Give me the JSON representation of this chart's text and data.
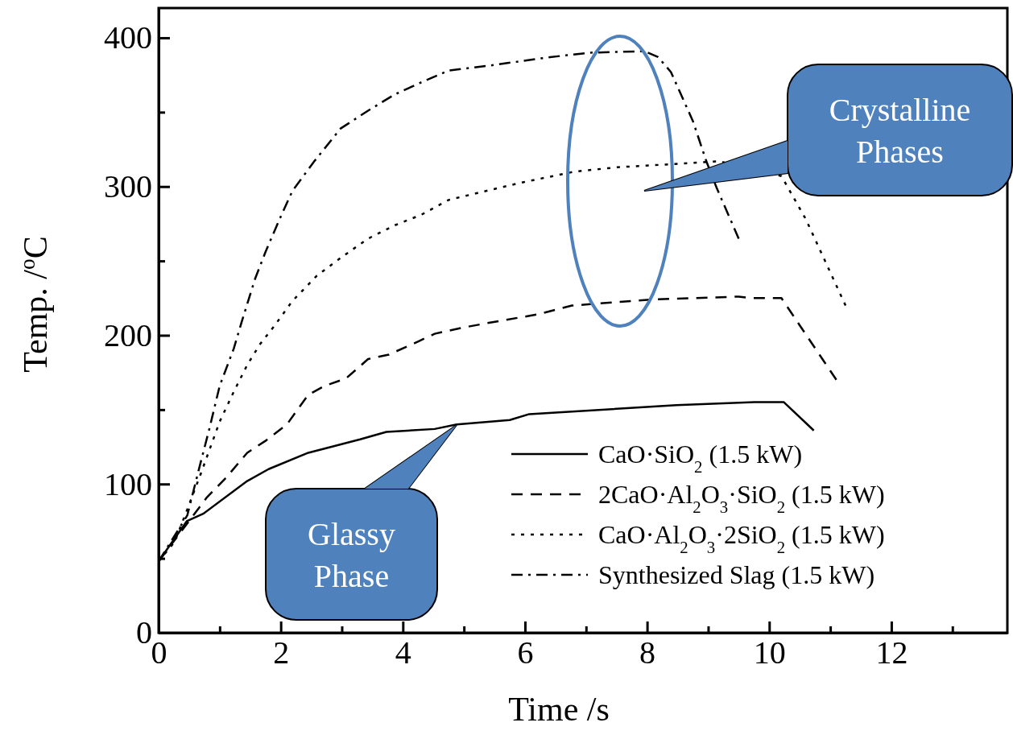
{
  "chart_data": {
    "type": "line",
    "xlabel": "Time /s",
    "ylabel": "Temp. /$^{o}$C",
    "xlim": [
      0,
      13.9
    ],
    "ylim": [
      0,
      420
    ],
    "xticks": [
      0,
      {
        "value": 1,
        "label": null
      },
      2,
      {
        "value": 3,
        "label": null
      },
      4,
      {
        "value": 5,
        "label": null
      },
      6,
      {
        "value": 7,
        "label": null
      },
      8,
      {
        "value": 9,
        "label": null
      },
      10,
      {
        "value": 11,
        "label": null
      },
      12,
      {
        "value": 13,
        "label": null
      }
    ],
    "yticks": [
      0,
      {
        "value": 50,
        "label": null
      },
      100,
      {
        "value": 150,
        "label": null
      },
      200,
      {
        "value": 250,
        "label": null
      },
      300,
      {
        "value": 350,
        "label": null
      },
      400
    ],
    "legend": "bottom right",
    "grid": false,
    "series": [
      {
        "name": "CaO·SiO$_{2}$ (1.5 kW)",
        "color": "#000000",
        "line_style": "solid",
        "x": [
          0,
          0.46,
          0.73,
          1.45,
          1.8,
          2.45,
          3.3,
          3.73,
          4.52,
          4.88,
          5.75,
          6.07,
          6.5,
          8.48,
          9.76,
          10.24,
          10.73
        ],
        "values": [
          48,
          75,
          80,
          102,
          110,
          121,
          130,
          135,
          137,
          140,
          143,
          147,
          148,
          153,
          155,
          155,
          136
        ]
      },
      {
        "name": "2CaO·Al$_{2}$O$_{3}$·SiO$_{2}$ (1.5 kW)",
        "color": "#000000",
        "line_style": "dashed",
        "x": [
          0,
          0.79,
          1.1,
          1.45,
          1.75,
          2.1,
          2.45,
          2.72,
          3.07,
          3.43,
          3.77,
          4.26,
          4.52,
          4.96,
          5.36,
          6.2,
          6.77,
          8.05,
          9.5,
          9.71,
          10.2,
          11.1
        ],
        "values": [
          48,
          91,
          104,
          121,
          129,
          140,
          160,
          166,
          171,
          184,
          187,
          196,
          201,
          205,
          208,
          214,
          220,
          224,
          226,
          225,
          225,
          170
        ]
      },
      {
        "name": "CaO·Al$_{2}$O$_{3}$·2SiO$_{2}$ (1.5 kW)",
        "color": "#000000",
        "line_style": "dotted",
        "x": [
          0,
          0.26,
          0.47,
          0.7,
          1.0,
          1.23,
          1.45,
          1.66,
          1.89,
          2.19,
          2.59,
          2.98,
          3.43,
          3.87,
          4.3,
          4.75,
          5.36,
          5.98,
          6.81,
          7.52,
          8.39,
          9.18,
          9.6,
          10.2,
          10.6,
          11.25
        ],
        "values": [
          48,
          61,
          83,
          108,
          142,
          162,
          180,
          194,
          206,
          223,
          240,
          252,
          265,
          274,
          281,
          291,
          297,
          303,
          310,
          313,
          315,
          317,
          null,
          307,
          278,
          220
        ]
      },
      {
        "name": "Synthesized Slag (1.5 kW)",
        "color": "#000000",
        "line_style": "dashdot",
        "x": [
          0,
          0.47,
          0.66,
          0.83,
          1.0,
          1.23,
          1.36,
          1.58,
          1.75,
          1.98,
          2.19,
          2.55,
          2.98,
          3.43,
          3.87,
          4.3,
          4.75,
          5.36,
          6.41,
          7.07,
          7.96,
          8.18,
          8.39,
          8.75,
          8.97,
          9.14,
          9.5
        ],
        "values": [
          48,
          79,
          110,
          137,
          166,
          191,
          209,
          238,
          256,
          278,
          297,
          317,
          339,
          351,
          362,
          370,
          378,
          381,
          387,
          390,
          391,
          387,
          377,
          344,
          317,
          299,
          265
        ]
      }
    ],
    "annotations": [
      "Glassy Phase",
      "Crystalline Phases"
    ]
  }
}
